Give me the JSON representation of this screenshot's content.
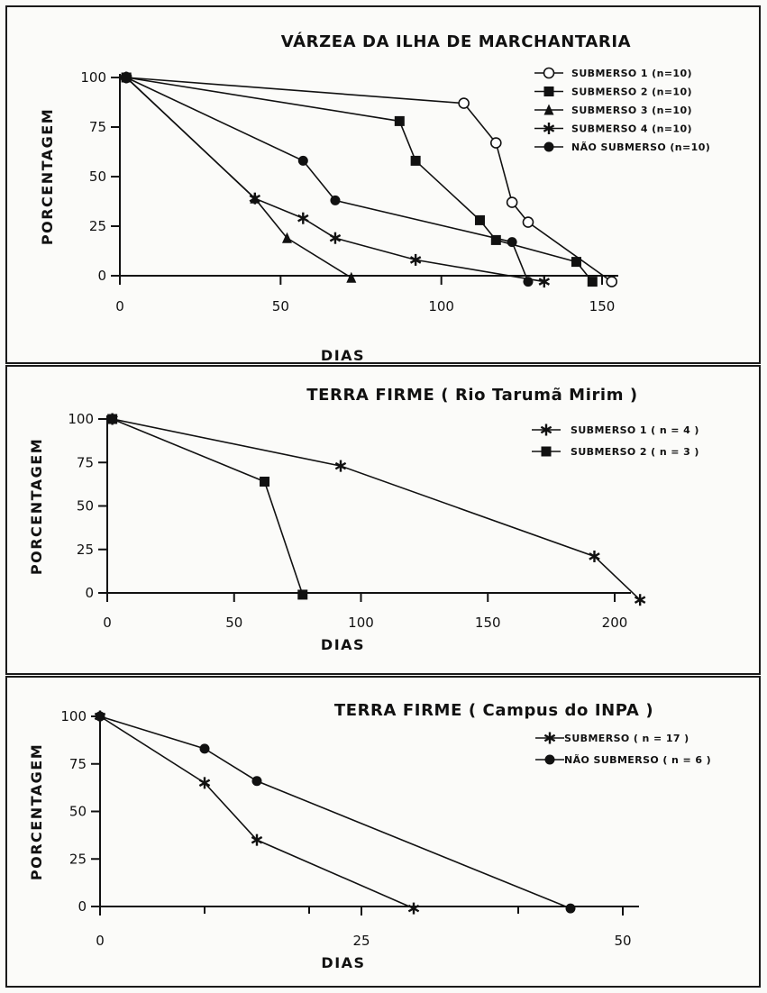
{
  "chart_data": [
    {
      "type": "line",
      "title": "VÁRZEA DA ILHA DE MARCHANTARIA",
      "xlabel": "DIAS",
      "ylabel": "PORCENTAGEM",
      "xlim": [
        0,
        150
      ],
      "ylim": [
        0,
        100
      ],
      "xticks": [
        0,
        50,
        100,
        150
      ],
      "yticks": [
        0,
        25,
        50,
        75,
        100
      ],
      "legend_position": "top-right",
      "series": [
        {
          "name": "SUBMERSO 1 (n=10)",
          "marker": "open-circle",
          "x": [
            2,
            107,
            117,
            122,
            127,
            153
          ],
          "y": [
            100,
            87,
            67,
            37,
            27,
            -3
          ]
        },
        {
          "name": "SUBMERSO 2 (n=10)",
          "marker": "filled-square",
          "x": [
            2,
            87,
            92,
            112,
            117,
            142,
            147
          ],
          "y": [
            100,
            78,
            58,
            28,
            18,
            7,
            -3
          ]
        },
        {
          "name": "SUBMERSO 3 (n=10)",
          "marker": "filled-triangle",
          "x": [
            2,
            42,
            52,
            72
          ],
          "y": [
            100,
            39,
            19,
            -1
          ]
        },
        {
          "name": "SUBMERSO 4 (n=10)",
          "marker": "asterisk",
          "x": [
            2,
            42,
            57,
            67,
            92,
            132
          ],
          "y": [
            100,
            39,
            29,
            19,
            8,
            -3
          ]
        },
        {
          "name": "NÃO SUBMERSO (n=10)",
          "marker": "filled-circle",
          "x": [
            2,
            57,
            67,
            122,
            127
          ],
          "y": [
            100,
            58,
            38,
            17,
            -3
          ]
        }
      ]
    },
    {
      "type": "line",
      "title": "TERRA FIRME ( Rio Tarumã Mirim )",
      "xlabel": "DIAS",
      "ylabel": "PORCENTAGEM",
      "xlim": [
        0,
        200
      ],
      "ylim": [
        0,
        100
      ],
      "xticks": [
        0,
        50,
        100,
        150,
        200
      ],
      "yticks": [
        0,
        25,
        50,
        75,
        100
      ],
      "legend_position": "top-right",
      "series": [
        {
          "name": "SUBMERSO 1 ( n = 4 )",
          "marker": "asterisk",
          "x": [
            2,
            92,
            192,
            210
          ],
          "y": [
            100,
            73,
            21,
            -4
          ]
        },
        {
          "name": "SUBMERSO 2 ( n = 3 )",
          "marker": "filled-square",
          "x": [
            2,
            62,
            77
          ],
          "y": [
            100,
            64,
            -1
          ]
        }
      ]
    },
    {
      "type": "line",
      "title": "TERRA FIRME ( Campus do INPA )",
      "xlabel": "DIAS",
      "ylabel": "PORCENTAGEM",
      "xlim": [
        0,
        50
      ],
      "ylim": [
        0,
        100
      ],
      "xticks": [
        0,
        25,
        50
      ],
      "xticks_minor": [
        10,
        20,
        40
      ],
      "yticks": [
        0,
        25,
        50,
        75,
        100
      ],
      "legend_position": "top-right",
      "series": [
        {
          "name": "SUBMERSO ( n = 17 )",
          "marker": "asterisk",
          "x": [
            0,
            10,
            15,
            30
          ],
          "y": [
            100,
            65,
            35,
            -1
          ]
        },
        {
          "name": "NÃO SUBMERSO ( n = 6 )",
          "marker": "filled-circle",
          "x": [
            0,
            10,
            15,
            45
          ],
          "y": [
            100,
            83,
            66,
            -1
          ]
        }
      ]
    }
  ]
}
